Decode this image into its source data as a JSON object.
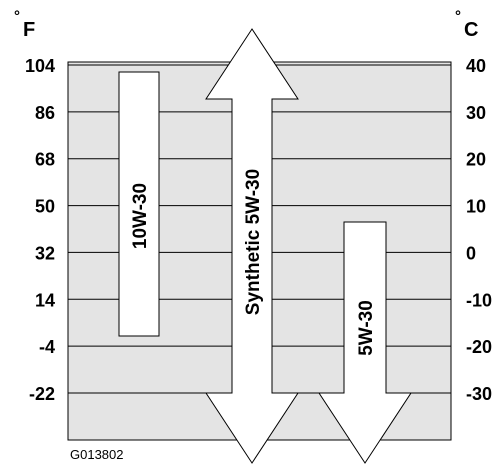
{
  "units": {
    "left": "F",
    "right": "C",
    "degree_symbol": "°"
  },
  "left_ticks": [
    "104",
    "86",
    "68",
    "50",
    "32",
    "14",
    "-4",
    "-22"
  ],
  "right_ticks": [
    "40",
    "30",
    "20",
    "10",
    "0",
    "-10",
    "-20",
    "-30"
  ],
  "bars": [
    {
      "label": "10W-30",
      "upper_c": 40,
      "lower_c": -20,
      "extends_up": false,
      "extends_down": false
    },
    {
      "label": "Synthetic 5W-30",
      "upper_c": 40,
      "lower_c": -30,
      "extends_up": true,
      "extends_down": true
    },
    {
      "label": "5W-30",
      "upper_c": 7,
      "lower_c": -30,
      "extends_up": false,
      "extends_down": true
    }
  ],
  "figure_code": "G013802",
  "colors": {
    "panel": "#e4e4e4",
    "bar_fill": "#ffffff",
    "stroke": "#000000",
    "grid": "#000000"
  }
}
